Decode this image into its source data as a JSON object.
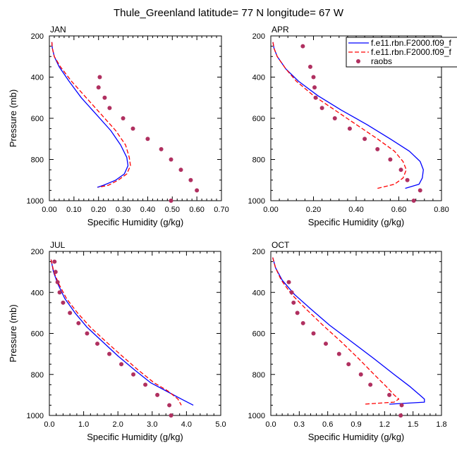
{
  "title": "Thule_Greenland  latitude= 77 N longitude= 67 W",
  "legend": {
    "entries": [
      {
        "label": "f.e11.rbn.F2000.f09_f",
        "color": "#0000ff",
        "style": "solid"
      },
      {
        "label": "f.e11.rbn.F2000.f09_f",
        "color": "#ff0000",
        "style": "dashed"
      },
      {
        "label": "raobs",
        "color": "#b03060",
        "style": "marker"
      }
    ]
  },
  "chart_data": [
    {
      "type": "line",
      "panel": "JAN",
      "title": "JAN",
      "xlabel": "Specific Humidity (g/kg)",
      "ylabel": "Pressure (mb)",
      "xlim": [
        0,
        0.7
      ],
      "xticks": [
        0,
        0.1,
        0.2,
        0.3,
        0.4,
        0.5,
        0.6,
        0.7
      ],
      "xticklabels": [
        "0.00",
        "0.10",
        "0.20",
        "0.30",
        "0.40",
        "0.50",
        "0.60",
        "0.70"
      ],
      "ylim": [
        1000,
        200
      ],
      "yticks": [
        200,
        400,
        600,
        800,
        1000
      ],
      "series": [
        {
          "name": "f.e11.rbn.F2000.f09_f (solid)",
          "color": "#0000ff",
          "dash": "",
          "x": [
            0.01,
            0.012,
            0.02,
            0.04,
            0.08,
            0.13,
            0.19,
            0.25,
            0.29,
            0.315,
            0.32,
            0.305,
            0.27,
            0.22,
            0.195
          ],
          "y": [
            230,
            260,
            300,
            350,
            420,
            500,
            580,
            660,
            730,
            790,
            830,
            870,
            900,
            925,
            935
          ]
        },
        {
          "name": "f.e11.rbn.F2000.f09_f (dashed)",
          "color": "#ff0000",
          "dash": "6,3",
          "x": [
            0.01,
            0.012,
            0.02,
            0.045,
            0.09,
            0.15,
            0.21,
            0.27,
            0.31,
            0.325,
            0.33,
            0.315,
            0.28,
            0.24,
            0.2
          ],
          "y": [
            230,
            260,
            300,
            350,
            420,
            500,
            580,
            660,
            730,
            790,
            830,
            870,
            900,
            925,
            935
          ]
        }
      ],
      "points": {
        "name": "raobs",
        "color": "#b03060",
        "x": [
          0.205,
          0.2,
          0.225,
          0.245,
          0.3,
          0.34,
          0.4,
          0.455,
          0.495,
          0.535,
          0.575,
          0.6,
          0.495
        ],
        "y": [
          400,
          450,
          500,
          550,
          600,
          650,
          700,
          750,
          800,
          850,
          900,
          950,
          1000
        ]
      }
    },
    {
      "type": "line",
      "panel": "APR",
      "title": "APR",
      "xlabel": "Specific Humidity (g/kg)",
      "ylabel": "",
      "xlim": [
        0,
        0.8
      ],
      "xticks": [
        0,
        0.2,
        0.4,
        0.6,
        0.8
      ],
      "xticklabels": [
        "0.00",
        "0.20",
        "0.40",
        "0.60",
        "0.80"
      ],
      "ylim": [
        1000,
        200
      ],
      "yticks": [
        200,
        400,
        600,
        800,
        1000
      ],
      "series": [
        {
          "name": "f.e11.rbn.F2000.f09_f (solid)",
          "color": "#0000ff",
          "dash": "",
          "x": [
            0.01,
            0.015,
            0.03,
            0.07,
            0.13,
            0.22,
            0.33,
            0.45,
            0.56,
            0.65,
            0.7,
            0.715,
            0.71,
            0.695,
            0.63
          ],
          "y": [
            230,
            260,
            300,
            360,
            420,
            490,
            560,
            630,
            700,
            760,
            810,
            850,
            890,
            920,
            940
          ]
        },
        {
          "name": "f.e11.rbn.F2000.f09_f (dashed)",
          "color": "#ff0000",
          "dash": "6,3",
          "x": [
            0.01,
            0.015,
            0.03,
            0.07,
            0.12,
            0.2,
            0.3,
            0.4,
            0.5,
            0.58,
            0.62,
            0.635,
            0.62,
            0.58,
            0.5
          ],
          "y": [
            230,
            260,
            300,
            360,
            420,
            490,
            560,
            630,
            700,
            760,
            810,
            850,
            890,
            920,
            940
          ]
        }
      ],
      "points": {
        "name": "raobs",
        "color": "#b03060",
        "x": [
          0.15,
          0.185,
          0.2,
          0.205,
          0.21,
          0.24,
          0.3,
          0.37,
          0.44,
          0.5,
          0.56,
          0.61,
          0.64,
          0.7,
          0.67
        ],
        "y": [
          250,
          350,
          400,
          450,
          500,
          550,
          600,
          650,
          700,
          750,
          800,
          850,
          900,
          950,
          1000
        ]
      }
    },
    {
      "type": "line",
      "panel": "JUL",
      "title": "JUL",
      "xlabel": "Specific Humidity (g/kg)",
      "ylabel": "Pressure (mb)",
      "xlim": [
        0,
        5
      ],
      "xticks": [
        0,
        1,
        2,
        3,
        4,
        5
      ],
      "xticklabels": [
        "0.0",
        "1.0",
        "2.0",
        "3.0",
        "4.0",
        "5.0"
      ],
      "ylim": [
        1000,
        200
      ],
      "yticks": [
        200,
        400,
        600,
        800,
        1000
      ],
      "series": [
        {
          "name": "f.e11.rbn.F2000.f09_f (solid)",
          "color": "#0000ff",
          "dash": "",
          "x": [
            0.05,
            0.12,
            0.25,
            0.45,
            0.75,
            1.1,
            1.55,
            2.0,
            2.5,
            2.95,
            3.4,
            3.85,
            4.2
          ],
          "y": [
            240,
            300,
            360,
            430,
            500,
            570,
            640,
            710,
            780,
            840,
            880,
            920,
            950
          ]
        },
        {
          "name": "f.e11.rbn.F2000.f09_f (dashed)",
          "color": "#ff0000",
          "dash": "6,3",
          "x": [
            0.05,
            0.13,
            0.28,
            0.5,
            0.82,
            1.2,
            1.65,
            2.12,
            2.6,
            3.05,
            3.45,
            3.75,
            3.85
          ],
          "y": [
            240,
            300,
            360,
            430,
            500,
            570,
            640,
            710,
            780,
            840,
            880,
            920,
            950
          ]
        }
      ],
      "points": {
        "name": "raobs",
        "color": "#b03060",
        "x": [
          0.15,
          0.18,
          0.24,
          0.3,
          0.4,
          0.6,
          0.85,
          1.1,
          1.4,
          1.75,
          2.1,
          2.45,
          2.8,
          3.15,
          3.5,
          3.55
        ],
        "y": [
          250,
          300,
          350,
          400,
          450,
          500,
          550,
          600,
          650,
          700,
          750,
          800,
          850,
          900,
          950,
          1000
        ]
      }
    },
    {
      "type": "line",
      "panel": "OCT",
      "title": "OCT",
      "xlabel": "Specific Humidity (g/kg)",
      "ylabel": "",
      "xlim": [
        0,
        1.8
      ],
      "xticks": [
        0,
        0.3,
        0.6,
        0.9,
        1.2,
        1.5,
        1.8
      ],
      "xticklabels": [
        "0.0",
        "0.3",
        "0.6",
        "0.9",
        "1.2",
        "1.5",
        "1.8"
      ],
      "ylim": [
        1000,
        200
      ],
      "yticks": [
        200,
        400,
        600,
        800,
        1000
      ],
      "series": [
        {
          "name": "f.e11.rbn.F2000.f09_f (solid)",
          "color": "#0000ff",
          "dash": "",
          "x": [
            0.02,
            0.05,
            0.12,
            0.25,
            0.42,
            0.62,
            0.85,
            1.08,
            1.3,
            1.47,
            1.57,
            1.62,
            1.62,
            1.25
          ],
          "y": [
            230,
            280,
            340,
            410,
            480,
            560,
            640,
            720,
            800,
            860,
            900,
            920,
            935,
            945
          ]
        },
        {
          "name": "f.e11.rbn.F2000.f09_f (dashed)",
          "color": "#ff0000",
          "dash": "6,3",
          "x": [
            0.02,
            0.05,
            0.11,
            0.22,
            0.37,
            0.55,
            0.74,
            0.92,
            1.09,
            1.22,
            1.3,
            1.35,
            1.3,
            0.98
          ],
          "y": [
            230,
            280,
            340,
            410,
            480,
            560,
            640,
            720,
            800,
            860,
            900,
            920,
            935,
            945
          ]
        }
      ],
      "points": {
        "name": "raobs",
        "color": "#b03060",
        "x": [
          0.19,
          0.22,
          0.24,
          0.28,
          0.34,
          0.45,
          0.58,
          0.72,
          0.82,
          0.95,
          1.05,
          1.25,
          1.38,
          1.37
        ],
        "y": [
          350,
          400,
          450,
          500,
          550,
          600,
          650,
          700,
          750,
          800,
          850,
          900,
          950,
          1000
        ]
      }
    }
  ]
}
